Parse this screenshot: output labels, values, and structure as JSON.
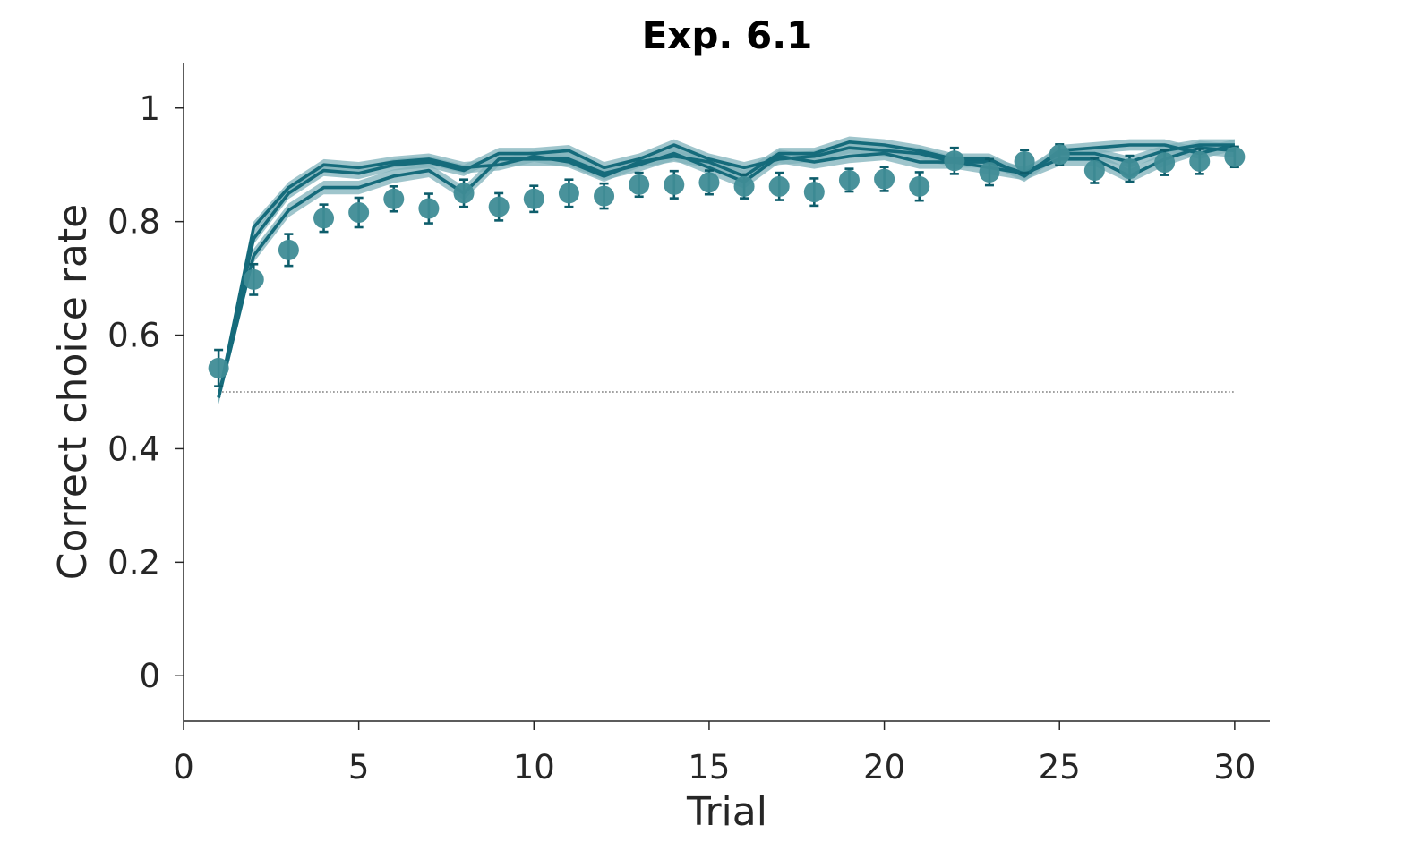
{
  "chart_data": {
    "type": "line",
    "title": "Exp. 6.1",
    "xlabel": "Trial",
    "ylabel": "Correct choice rate",
    "xlim": [
      0,
      31
    ],
    "ylim": [
      -0.08,
      1.08
    ],
    "xticks": [
      "0",
      "5",
      "10",
      "15",
      "20",
      "25",
      "30"
    ],
    "yticks": [
      "0",
      "0.2",
      "0.4",
      "0.6",
      "0.8",
      "1"
    ],
    "grid": false,
    "legend": "none",
    "chance_level": 0.5,
    "x": [
      1,
      2,
      3,
      4,
      5,
      6,
      7,
      8,
      9,
      10,
      11,
      12,
      13,
      14,
      15,
      16,
      17,
      18,
      19,
      20,
      21,
      22,
      23,
      24,
      25,
      26,
      27,
      28,
      29,
      30
    ],
    "series": [
      {
        "style": "points-with-errorbars",
        "values": [
          0.542,
          0.698,
          0.75,
          0.806,
          0.816,
          0.84,
          0.823,
          0.85,
          0.826,
          0.84,
          0.85,
          0.845,
          0.865,
          0.865,
          0.869,
          0.862,
          0.862,
          0.852,
          0.873,
          0.875,
          0.862,
          0.907,
          0.887,
          0.906,
          0.918,
          0.89,
          0.893,
          0.904,
          0.906,
          0.914
        ],
        "error": [
          0.032,
          0.027,
          0.028,
          0.024,
          0.026,
          0.022,
          0.026,
          0.024,
          0.024,
          0.023,
          0.024,
          0.022,
          0.021,
          0.024,
          0.021,
          0.021,
          0.024,
          0.024,
          0.02,
          0.021,
          0.025,
          0.023,
          0.023,
          0.02,
          0.018,
          0.022,
          0.023,
          0.022,
          0.022,
          0.018
        ]
      },
      {
        "style": "line-with-band",
        "values": [
          0.49,
          0.79,
          0.86,
          0.9,
          0.895,
          0.905,
          0.91,
          0.895,
          0.9,
          0.915,
          0.905,
          0.88,
          0.905,
          0.915,
          0.905,
          0.88,
          0.92,
          0.92,
          0.94,
          0.935,
          0.925,
          0.91,
          0.91,
          0.88,
          0.925,
          0.93,
          0.935,
          0.935,
          0.92,
          0.935
        ],
        "band": 0.01
      },
      {
        "style": "line-with-band",
        "values": [
          0.49,
          0.77,
          0.85,
          0.89,
          0.885,
          0.9,
          0.905,
          0.89,
          0.92,
          0.92,
          0.925,
          0.895,
          0.91,
          0.935,
          0.91,
          0.895,
          0.91,
          0.915,
          0.93,
          0.925,
          0.92,
          0.905,
          0.905,
          0.885,
          0.92,
          0.92,
          0.905,
          0.925,
          0.935,
          0.935
        ],
        "band": 0.01
      },
      {
        "style": "line-with-band",
        "values": [
          0.49,
          0.74,
          0.82,
          0.86,
          0.86,
          0.88,
          0.89,
          0.85,
          0.91,
          0.91,
          0.91,
          0.885,
          0.9,
          0.92,
          0.895,
          0.87,
          0.915,
          0.905,
          0.915,
          0.92,
          0.905,
          0.905,
          0.895,
          0.885,
          0.91,
          0.91,
          0.88,
          0.91,
          0.93,
          0.925
        ],
        "band": 0.012
      }
    ],
    "colors": {
      "line": "#156b7b",
      "band": "#7fb2bb",
      "points": "#3f8c96",
      "errorbar": "#0d5d6b",
      "chance": "#555555",
      "axis": "#262626"
    }
  }
}
